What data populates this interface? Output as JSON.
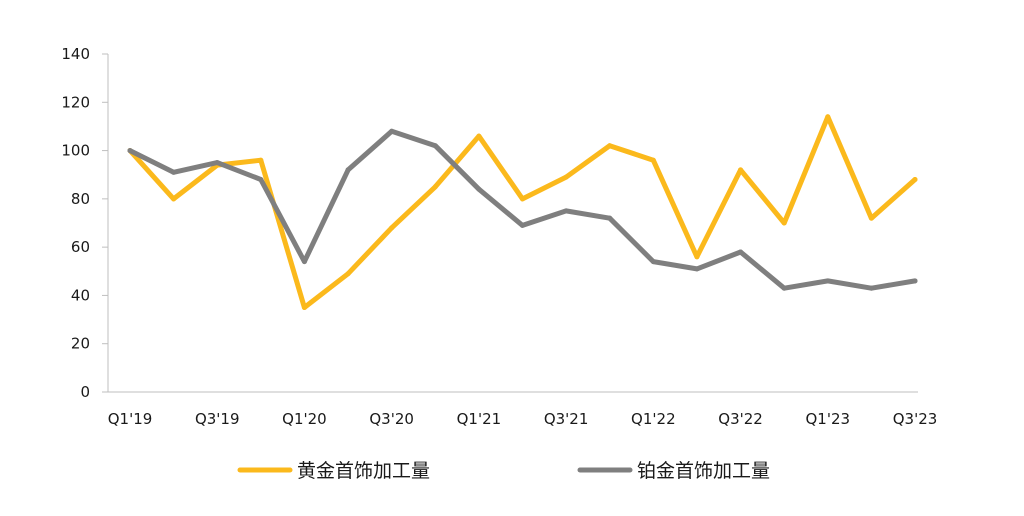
{
  "chart_data": {
    "type": "line",
    "title": "",
    "xlabel": "",
    "ylabel": "",
    "ylim": [
      0,
      140
    ],
    "yticks": [
      0,
      20,
      40,
      60,
      80,
      100,
      120,
      140
    ],
    "x": [
      "Q1'19",
      "Q2'19",
      "Q3'19",
      "Q4'19",
      "Q1'20",
      "Q2'20",
      "Q3'20",
      "Q4'20",
      "Q1'21",
      "Q2'21",
      "Q3'21",
      "Q4'21",
      "Q1'22",
      "Q2'22",
      "Q3'22",
      "Q4'22",
      "Q1'23",
      "Q2'23",
      "Q3'23"
    ],
    "x_tick_labels": [
      "Q1'19",
      "Q3'19",
      "Q1'20",
      "Q3'20",
      "Q1'21",
      "Q3'21",
      "Q1'22",
      "Q3'22",
      "Q1'23",
      "Q3'23"
    ],
    "grid": false,
    "legend_position": "bottom",
    "series": [
      {
        "name": "黄金首饰加工量",
        "color": "#FBB91C",
        "values": [
          100,
          80,
          94,
          96,
          35,
          49,
          68,
          85,
          106,
          80,
          89,
          102,
          96,
          56,
          92,
          70,
          114,
          72,
          88
        ]
      },
      {
        "name": "铂金首饰加工量",
        "color": "#7F7F7F",
        "values": [
          100,
          91,
          95,
          88,
          54,
          92,
          108,
          102,
          84,
          69,
          75,
          72,
          54,
          51,
          58,
          43,
          46,
          43,
          46
        ]
      }
    ]
  }
}
